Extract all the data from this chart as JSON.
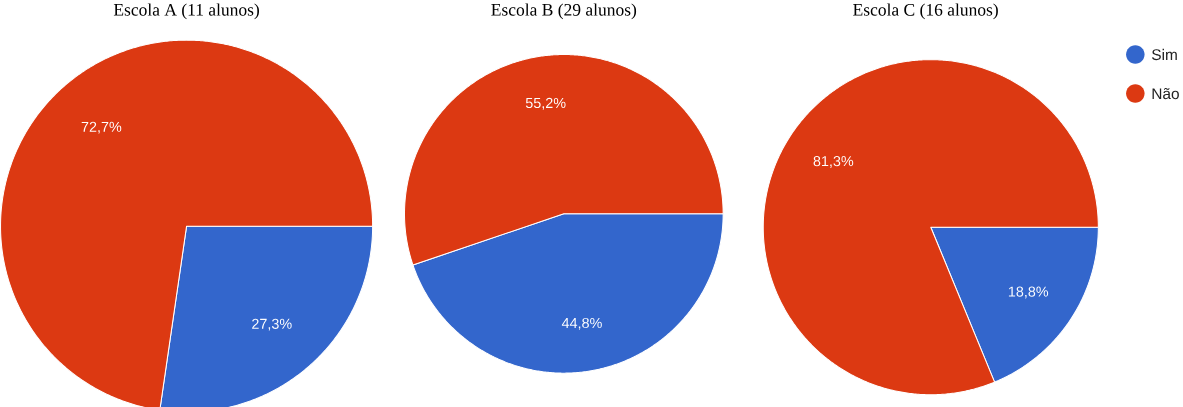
{
  "chart_data": [
    {
      "type": "pie",
      "title": "Escola A (11 alunos)",
      "categories": [
        null,
        null
      ],
      "values": [
        27.3,
        72.7
      ],
      "colors": [
        "#3366cc",
        "#dc3912"
      ],
      "value_labels": [
        "27,3%",
        "72,7%"
      ]
    },
    {
      "type": "pie",
      "title": "Escola B  (29 alunos)",
      "categories": [
        null,
        null
      ],
      "values": [
        44.8,
        55.2
      ],
      "colors": [
        "#3366cc",
        "#dc3912"
      ],
      "value_labels": [
        "44,8%",
        "55,2%"
      ]
    },
    {
      "type": "pie",
      "title": "Escola C (16 alunos)",
      "categories": [
        "Sim",
        "Não"
      ],
      "values": [
        18.8,
        81.3
      ],
      "colors": [
        "#3366cc",
        "#dc3912"
      ],
      "value_labels": [
        "18,8%",
        "81,3%"
      ],
      "legend": "right"
    }
  ]
}
